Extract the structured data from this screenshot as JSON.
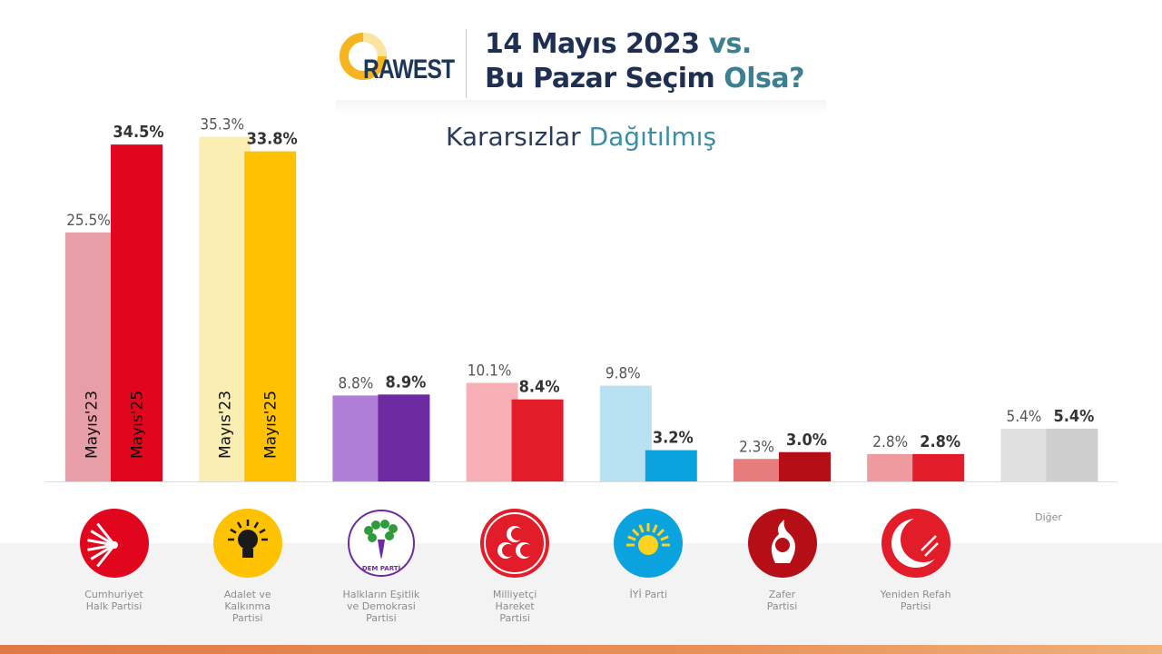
{
  "header": {
    "logo_text": "RAWEST",
    "title_line1_prefix": "14 Mayıs 2023 ",
    "title_line1_accent": "vs.",
    "title_line2_prefix": "Bu Pazar Seçim ",
    "title_line2_accent": "Olsa?",
    "subtitle_prefix": "Kararsızlar ",
    "subtitle_accent": "Dağıtılmış"
  },
  "chart_data": {
    "type": "bar",
    "series": [
      {
        "name": "Mayıs'23",
        "values": [
          25.5,
          35.3,
          8.8,
          10.1,
          9.8,
          2.3,
          2.8,
          5.4
        ]
      },
      {
        "name": "Mayıs'25",
        "values": [
          34.5,
          33.8,
          8.9,
          8.4,
          3.2,
          3.0,
          2.8,
          5.4
        ]
      }
    ],
    "categories": [
      "Cumhuriyet Halk Partisi",
      "Adalet ve Kalkınma Partisi",
      "Halkların Eşitlik ve Demokrasi Partisi",
      "Milliyetçi Hareket Partisi",
      "İYİ Parti",
      "Zafer Partisi",
      "Yeniden Refah Partisi",
      "Diğer"
    ],
    "labels_23": [
      "25.5%",
      "35.3%",
      "8.8%",
      "10.1%",
      "9.8%",
      "2.3%",
      "2.8%",
      "5.4%"
    ],
    "labels_25": [
      "34.5%",
      "33.8%",
      "8.9%",
      "8.4%",
      "3.2%",
      "3.0%",
      "2.8%",
      "5.4%"
    ],
    "colors_23": [
      "#e89ea6",
      "#fbeeb3",
      "#b07fd8",
      "#f8b0b6",
      "#b8e2f2",
      "#e77c7c",
      "#ee9a9e",
      "#e1e1e1"
    ],
    "colors_25": [
      "#e1061d",
      "#fec200",
      "#6e2aa0",
      "#e21c28",
      "#0aa3e0",
      "#b50e16",
      "#e21c28",
      "#cfcfcf"
    ],
    "ylim": [
      0,
      36
    ],
    "grid": false,
    "legend": "none"
  },
  "parties": [
    {
      "name": "Cumhuriyet\nHalk Partisi",
      "icon": "chp-logo-icon",
      "color": "#e1061d"
    },
    {
      "name": "Adalet ve\nKalkınma\nPartisi",
      "icon": "akp-logo-icon",
      "color": "#fec200"
    },
    {
      "name": "Halkların Eşitlik\nve Demokrasi\nPartisi",
      "icon": "dem-parti-logo-icon",
      "color": "#6e2aa0",
      "logo_text": "DEM PARTİ"
    },
    {
      "name": "Milliyetçi\nHareket\nPartisi",
      "icon": "mhp-logo-icon",
      "color": "#e21c28"
    },
    {
      "name": "İYİ Parti",
      "icon": "iyi-parti-logo-icon",
      "color": "#0aa3e0"
    },
    {
      "name": "Zafer\nPartisi",
      "icon": "zafer-logo-icon",
      "color": "#b50e16"
    },
    {
      "name": "Yeniden Refah\nPartisi",
      "icon": "yeniden-refah-logo-icon",
      "color": "#e21c28"
    }
  ],
  "other_label": "Diğer"
}
